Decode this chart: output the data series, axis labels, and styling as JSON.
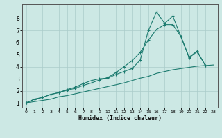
{
  "xlabel": "Humidex (Indice chaleur)",
  "background_color": "#cce8e4",
  "grid_color": "#aaccca",
  "line_color": "#1a7a6e",
  "xlim": [
    -0.5,
    23.5
  ],
  "ylim": [
    0.6,
    9.2
  ],
  "xticks": [
    0,
    1,
    2,
    3,
    4,
    5,
    6,
    7,
    8,
    9,
    10,
    11,
    12,
    13,
    14,
    15,
    16,
    17,
    18,
    19,
    20,
    21,
    22,
    23
  ],
  "yticks": [
    1,
    2,
    3,
    4,
    5,
    6,
    7,
    8
  ],
  "line1_x": [
    0,
    1,
    2,
    3,
    4,
    5,
    6,
    7,
    8,
    9,
    10,
    11,
    12,
    13,
    14,
    15,
    16,
    17,
    18,
    19,
    20,
    21,
    22
  ],
  "line1_y": [
    1.0,
    1.3,
    1.45,
    1.7,
    1.85,
    2.1,
    2.3,
    2.6,
    2.85,
    3.0,
    3.05,
    3.35,
    3.6,
    3.85,
    4.55,
    7.0,
    8.55,
    7.6,
    8.2,
    6.5,
    4.8,
    5.3,
    4.1
  ],
  "line2_x": [
    0,
    1,
    2,
    3,
    4,
    5,
    6,
    7,
    8,
    9,
    10,
    11,
    12,
    13,
    14,
    15,
    16,
    17,
    18,
    19,
    20,
    21,
    22
  ],
  "line2_y": [
    1.0,
    1.3,
    1.45,
    1.7,
    1.85,
    2.05,
    2.2,
    2.45,
    2.65,
    2.9,
    3.1,
    3.5,
    4.0,
    4.5,
    5.2,
    6.2,
    7.1,
    7.5,
    7.5,
    6.5,
    4.75,
    5.25,
    4.1
  ],
  "line3_x": [
    0,
    1,
    2,
    3,
    4,
    5,
    6,
    7,
    8,
    9,
    10,
    11,
    12,
    13,
    14,
    15,
    16,
    17,
    18,
    19,
    20,
    21,
    22,
    23
  ],
  "line3_y": [
    1.0,
    1.1,
    1.2,
    1.3,
    1.5,
    1.6,
    1.75,
    1.9,
    2.05,
    2.2,
    2.35,
    2.5,
    2.65,
    2.85,
    3.05,
    3.2,
    3.45,
    3.6,
    3.75,
    3.85,
    3.95,
    4.05,
    4.1,
    4.15
  ]
}
